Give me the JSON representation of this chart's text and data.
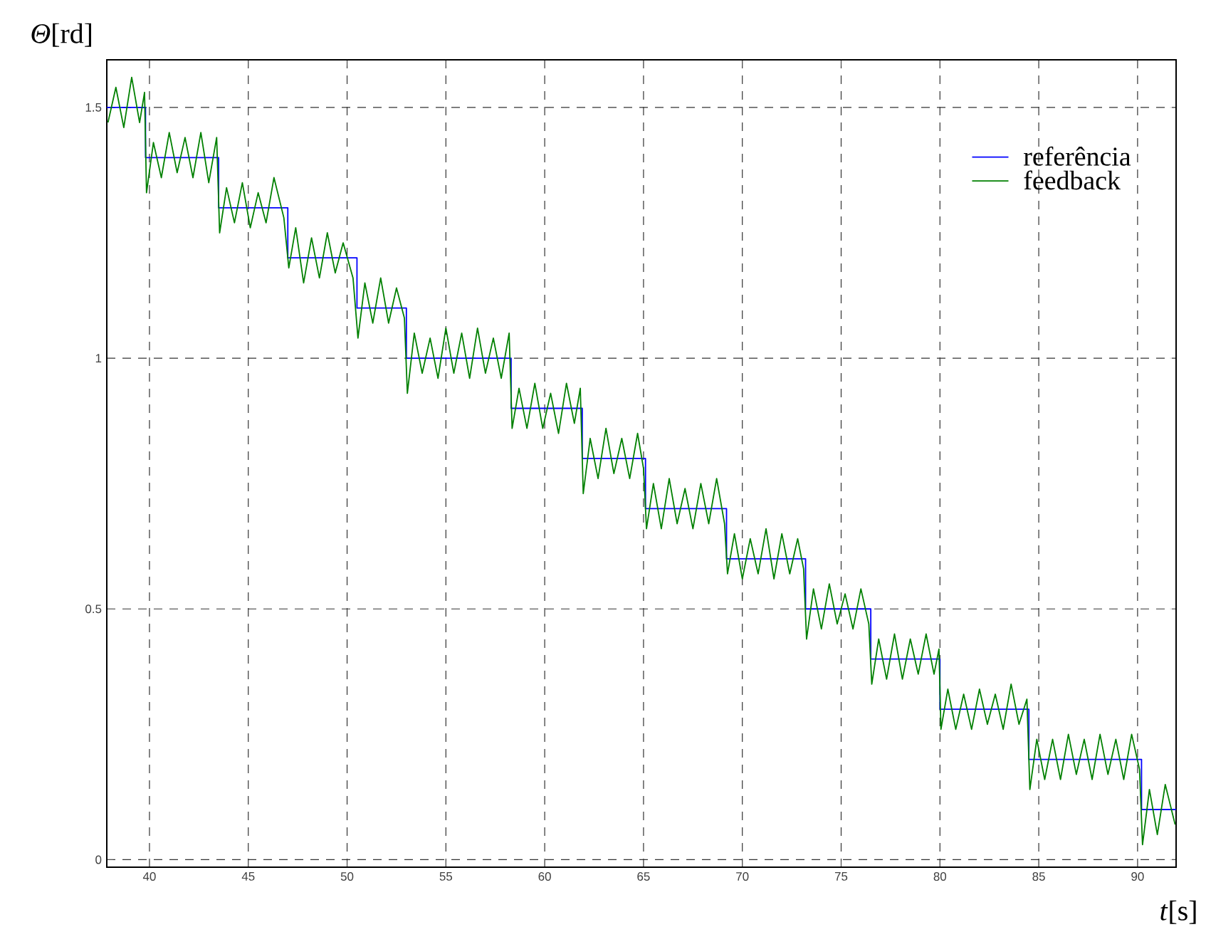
{
  "chart_data": {
    "type": "line",
    "xlabel": "*t*[s]",
    "ylabel": "*Θ*[rd]",
    "xlim": [
      37.84,
      91.95
    ],
    "ylim": [
      -0.015,
      1.595
    ],
    "xticks": [
      40,
      45,
      50,
      55,
      60,
      65,
      70,
      75,
      80,
      85,
      90
    ],
    "yticks": [
      0,
      0.5,
      1,
      1.5
    ],
    "grid": true,
    "legend": "top right",
    "series": [
      {
        "name": "referência",
        "type": "step",
        "color": "#0000ff",
        "x": [
          37.84,
          39.8,
          43.5,
          47.0,
          50.5,
          53.0,
          58.3,
          61.9,
          65.1,
          69.2,
          73.2,
          76.5,
          80.0,
          84.5,
          90.2,
          91.95
        ],
        "values": [
          1.5,
          1.4,
          1.3,
          1.2,
          1.1,
          1.0,
          0.9,
          0.8,
          0.7,
          0.6,
          0.5,
          0.4,
          0.3,
          0.2,
          0.1,
          0.1
        ]
      },
      {
        "name": "feedback",
        "type": "line",
        "color": "#008000",
        "x": [
          37.9,
          38.3,
          38.7,
          39.1,
          39.5,
          39.75,
          39.85,
          40.2,
          40.6,
          41.0,
          41.4,
          41.8,
          42.2,
          42.6,
          43.0,
          43.4,
          43.55,
          43.9,
          44.3,
          44.7,
          45.1,
          45.5,
          45.9,
          46.3,
          46.8,
          47.05,
          47.4,
          47.8,
          48.2,
          48.6,
          49.0,
          49.4,
          49.8,
          50.3,
          50.55,
          50.9,
          51.3,
          51.7,
          52.1,
          52.5,
          52.9,
          53.05,
          53.4,
          53.8,
          54.2,
          54.6,
          55.0,
          55.4,
          55.8,
          56.2,
          56.6,
          57.0,
          57.4,
          57.8,
          58.2,
          58.35,
          58.7,
          59.1,
          59.5,
          59.9,
          60.3,
          60.7,
          61.1,
          61.5,
          61.8,
          61.95,
          62.3,
          62.7,
          63.1,
          63.5,
          63.9,
          64.3,
          64.7,
          65.0,
          65.15,
          65.5,
          65.9,
          66.3,
          66.7,
          67.1,
          67.5,
          67.9,
          68.3,
          68.7,
          69.1,
          69.25,
          69.6,
          70.0,
          70.4,
          70.8,
          71.2,
          71.6,
          72.0,
          72.4,
          72.8,
          73.1,
          73.25,
          73.6,
          74.0,
          74.4,
          74.8,
          75.2,
          75.6,
          76.0,
          76.4,
          76.55,
          76.9,
          77.3,
          77.7,
          78.1,
          78.5,
          78.9,
          79.3,
          79.7,
          79.95,
          80.05,
          80.4,
          80.8,
          81.2,
          81.6,
          82.0,
          82.4,
          82.8,
          83.2,
          83.6,
          84.0,
          84.4,
          84.55,
          84.9,
          85.3,
          85.7,
          86.1,
          86.5,
          86.9,
          87.3,
          87.7,
          88.1,
          88.5,
          88.9,
          89.3,
          89.7,
          90.1,
          90.25,
          90.6,
          91.0,
          91.4,
          91.9
        ],
        "values": [
          1.47,
          1.54,
          1.46,
          1.56,
          1.47,
          1.53,
          1.33,
          1.43,
          1.36,
          1.45,
          1.37,
          1.44,
          1.36,
          1.45,
          1.35,
          1.44,
          1.25,
          1.34,
          1.27,
          1.35,
          1.26,
          1.33,
          1.27,
          1.36,
          1.28,
          1.18,
          1.26,
          1.15,
          1.24,
          1.16,
          1.25,
          1.17,
          1.23,
          1.16,
          1.04,
          1.15,
          1.07,
          1.16,
          1.07,
          1.14,
          1.08,
          0.93,
          1.05,
          0.97,
          1.04,
          0.96,
          1.06,
          0.97,
          1.05,
          0.96,
          1.06,
          0.97,
          1.04,
          0.96,
          1.05,
          0.86,
          0.94,
          0.86,
          0.95,
          0.86,
          0.93,
          0.85,
          0.95,
          0.87,
          0.94,
          0.73,
          0.84,
          0.76,
          0.86,
          0.77,
          0.84,
          0.76,
          0.85,
          0.78,
          0.66,
          0.75,
          0.66,
          0.76,
          0.67,
          0.74,
          0.66,
          0.75,
          0.67,
          0.76,
          0.67,
          0.57,
          0.65,
          0.56,
          0.64,
          0.57,
          0.66,
          0.56,
          0.65,
          0.57,
          0.64,
          0.58,
          0.44,
          0.54,
          0.46,
          0.55,
          0.47,
          0.53,
          0.46,
          0.54,
          0.47,
          0.35,
          0.44,
          0.36,
          0.45,
          0.36,
          0.44,
          0.37,
          0.45,
          0.37,
          0.42,
          0.26,
          0.34,
          0.26,
          0.33,
          0.26,
          0.34,
          0.27,
          0.33,
          0.26,
          0.35,
          0.27,
          0.32,
          0.14,
          0.24,
          0.16,
          0.24,
          0.16,
          0.25,
          0.17,
          0.24,
          0.16,
          0.25,
          0.17,
          0.24,
          0.16,
          0.25,
          0.18,
          0.03,
          0.14,
          0.05,
          0.15,
          0.07
        ]
      }
    ]
  }
}
